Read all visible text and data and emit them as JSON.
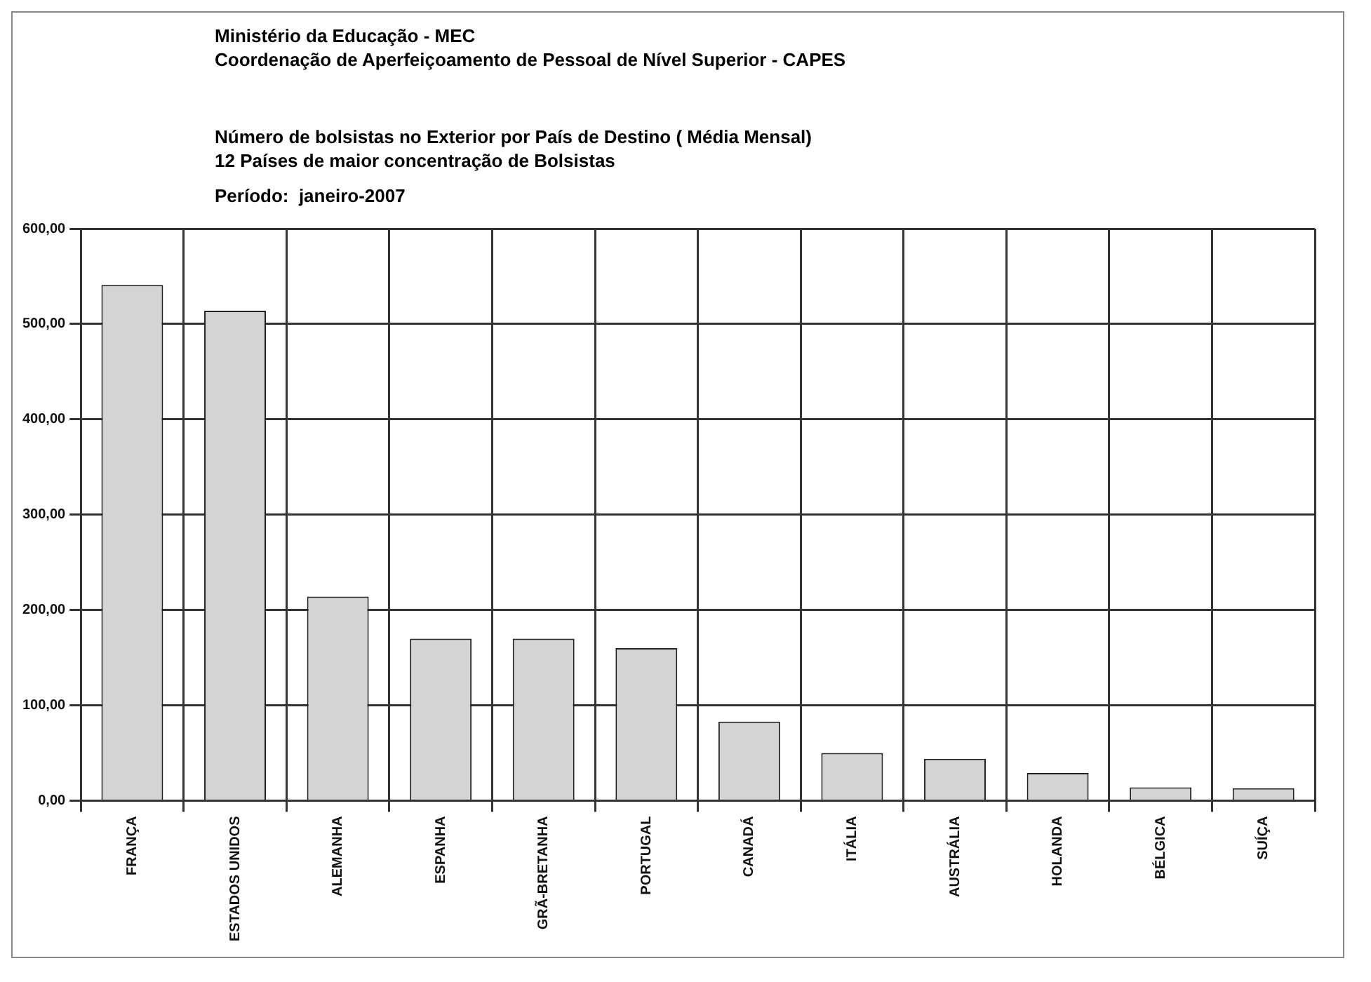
{
  "chart_data": {
    "type": "bar",
    "title": "Número de bolsistas no Exterior por País de Destino ( Média Mensal)",
    "subtitle": "12 Países de maior concentração de Bolsistas",
    "annotations": [
      "Ministério da Educação - MEC",
      "Coordenação de Aperfeiçoamento de Pessoal de Nível Superior - CAPES",
      "Período:  janeiro-2007"
    ],
    "categories": [
      "FRANÇA",
      "ESTADOS UNIDOS",
      "ALEMANHA",
      "ESPANHA",
      "GRÃ-BRETANHA",
      "PORTUGAL",
      "CANADÁ",
      "ITÁLIA",
      "AUSTRÁLIA",
      "HOLANDA",
      "BÉLGICA",
      "SUÍÇA"
    ],
    "values": [
      541,
      514,
      214,
      170,
      170,
      160,
      83,
      50,
      44,
      29,
      14,
      13
    ],
    "color": "#d4d4d4",
    "ylim": [
      0,
      600
    ],
    "yticks": [
      {
        "value": 0,
        "label": "0,00"
      },
      {
        "value": 100,
        "label": "100,00"
      },
      {
        "value": 200,
        "label": "200,00"
      },
      {
        "value": 300,
        "label": "300,00"
      },
      {
        "value": 400,
        "label": "400,00"
      },
      {
        "value": 500,
        "label": "500,00"
      },
      {
        "value": 600,
        "label": "600,00"
      }
    ],
    "grid": true,
    "legend": false
  }
}
